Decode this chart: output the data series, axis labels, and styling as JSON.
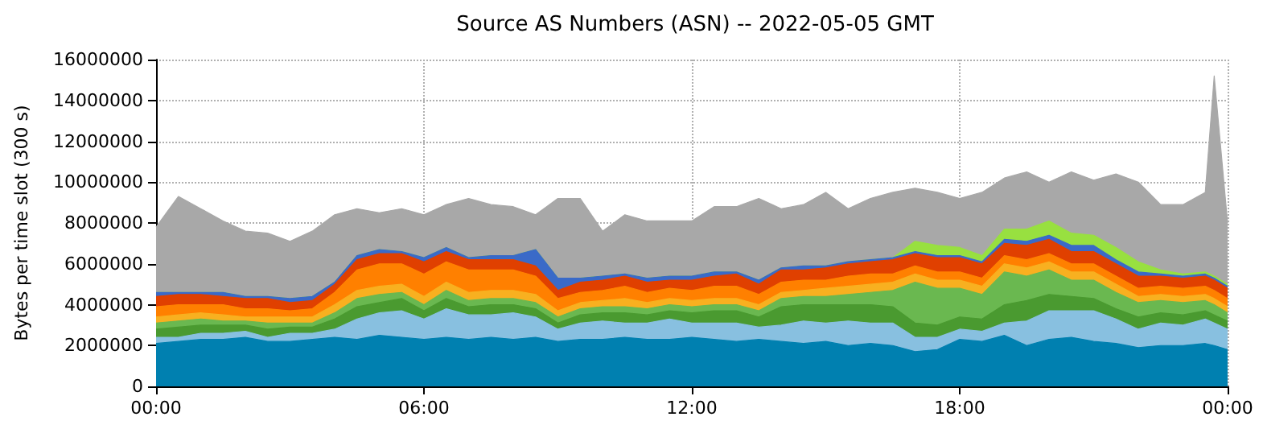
{
  "chart_data": {
    "type": "area",
    "stacked": true,
    "title": "Source AS Numbers (ASN) -- 2022-05-05 GMT",
    "ylabel": "Bytes per time slot (300 s)",
    "x": [
      0,
      0.5,
      1,
      1.5,
      2,
      2.5,
      3,
      3.5,
      4,
      4.5,
      5,
      5.5,
      6,
      6.5,
      7,
      7.5,
      8,
      8.5,
      9,
      9.5,
      10,
      10.5,
      11,
      11.5,
      12,
      12.5,
      13,
      13.5,
      14,
      14.5,
      15,
      15.5,
      16,
      16.5,
      17,
      17.5,
      18,
      18.5,
      19,
      19.5,
      20,
      20.5,
      21,
      21.5,
      22,
      22.5,
      23,
      23.5,
      23.7,
      24
    ],
    "xlim": [
      0,
      24
    ],
    "xticks": [
      {
        "value": 0,
        "label": "00:00"
      },
      {
        "value": 6,
        "label": "06:00"
      },
      {
        "value": 12,
        "label": "12:00"
      },
      {
        "value": 18,
        "label": "18:00"
      },
      {
        "value": 24,
        "label": "00:00"
      }
    ],
    "ylim": [
      0,
      16000000
    ],
    "yticks": [
      0,
      2000000,
      4000000,
      6000000,
      8000000,
      10000000,
      12000000,
      14000000,
      16000000
    ],
    "grid": true,
    "marker": "none",
    "series": [
      {
        "color": "#0080b0",
        "values": [
          2100000,
          2200000,
          2300000,
          2300000,
          2400000,
          2200000,
          2200000,
          2300000,
          2400000,
          2300000,
          2500000,
          2400000,
          2300000,
          2400000,
          2300000,
          2400000,
          2300000,
          2400000,
          2200000,
          2300000,
          2300000,
          2400000,
          2300000,
          2300000,
          2400000,
          2300000,
          2200000,
          2300000,
          2200000,
          2100000,
          2200000,
          2000000,
          2100000,
          2000000,
          1700000,
          1800000,
          2300000,
          2200000,
          2500000,
          2000000,
          2300000,
          2400000,
          2200000,
          2100000,
          1900000,
          2000000,
          2000000,
          2100000,
          2000000,
          1800000
        ]
      },
      {
        "color": "#88c0e0",
        "values": [
          300000,
          200000,
          300000,
          300000,
          300000,
          200000,
          400000,
          300000,
          400000,
          1000000,
          1100000,
          1300000,
          1000000,
          1400000,
          1200000,
          1100000,
          1300000,
          1000000,
          600000,
          800000,
          900000,
          700000,
          800000,
          1000000,
          700000,
          800000,
          900000,
          600000,
          800000,
          1100000,
          900000,
          1200000,
          1000000,
          1100000,
          700000,
          600000,
          500000,
          500000,
          600000,
          1200000,
          1400000,
          1300000,
          1500000,
          1200000,
          900000,
          1100000,
          1000000,
          1200000,
          1100000,
          1000000
        ]
      },
      {
        "color": "#4a9a30",
        "values": [
          400000,
          500000,
          400000,
          400000,
          300000,
          400000,
          300000,
          300000,
          500000,
          600000,
          500000,
          600000,
          400000,
          500000,
          400000,
          500000,
          400000,
          400000,
          300000,
          400000,
          400000,
          500000,
          400000,
          400000,
          500000,
          600000,
          600000,
          500000,
          900000,
          800000,
          900000,
          800000,
          900000,
          800000,
          700000,
          600000,
          600000,
          600000,
          900000,
          1000000,
          800000,
          700000,
          600000,
          500000,
          600000,
          500000,
          500000,
          400000,
          400000,
          400000
        ]
      },
      {
        "color": "#6ab850",
        "values": [
          300000,
          300000,
          300000,
          200000,
          200000,
          300000,
          200000,
          200000,
          300000,
          400000,
          400000,
          300000,
          300000,
          400000,
          300000,
          300000,
          300000,
          300000,
          300000,
          300000,
          300000,
          300000,
          300000,
          300000,
          300000,
          300000,
          300000,
          300000,
          400000,
          400000,
          400000,
          500000,
          600000,
          800000,
          2000000,
          1800000,
          1400000,
          1200000,
          1600000,
          1200000,
          1200000,
          800000,
          900000,
          800000,
          700000,
          600000,
          600000,
          500000,
          500000,
          400000
        ]
      },
      {
        "color": "#f8b020",
        "values": [
          300000,
          300000,
          300000,
          300000,
          200000,
          300000,
          300000,
          300000,
          400000,
          400000,
          400000,
          400000,
          400000,
          400000,
          400000,
          400000,
          400000,
          400000,
          300000,
          300000,
          300000,
          400000,
          300000,
          300000,
          300000,
          300000,
          300000,
          300000,
          300000,
          300000,
          400000,
          400000,
          400000,
          400000,
          400000,
          400000,
          400000,
          400000,
          400000,
          400000,
          400000,
          400000,
          400000,
          400000,
          300000,
          300000,
          300000,
          300000,
          300000,
          300000
        ]
      },
      {
        "color": "#ff8000",
        "values": [
          500000,
          500000,
          400000,
          500000,
          400000,
          400000,
          300000,
          400000,
          600000,
          1000000,
          1100000,
          1000000,
          1100000,
          1000000,
          1100000,
          1000000,
          1000000,
          900000,
          600000,
          500000,
          500000,
          600000,
          500000,
          500000,
          500000,
          600000,
          600000,
          500000,
          500000,
          500000,
          400000,
          500000,
          500000,
          400000,
          400000,
          400000,
          400000,
          400000,
          400000,
          400000,
          400000,
          400000,
          400000,
          400000,
          400000,
          400000,
          400000,
          400000,
          400000,
          400000
        ]
      },
      {
        "color": "#e04000",
        "values": [
          500000,
          500000,
          500000,
          400000,
          500000,
          500000,
          400000,
          400000,
          400000,
          500000,
          500000,
          500000,
          600000,
          500000,
          500000,
          500000,
          500000,
          500000,
          400000,
          500000,
          500000,
          500000,
          500000,
          400000,
          500000,
          500000,
          600000,
          500000,
          600000,
          500000,
          600000,
          600000,
          600000,
          700000,
          600000,
          700000,
          700000,
          700000,
          600000,
          700000,
          700000,
          600000,
          600000,
          600000,
          600000,
          500000,
          500000,
          500000,
          500000,
          500000
        ]
      },
      {
        "color": "#3a6ac8",
        "values": [
          200000,
          100000,
          100000,
          200000,
          100000,
          100000,
          200000,
          200000,
          100000,
          200000,
          200000,
          100000,
          200000,
          200000,
          100000,
          200000,
          200000,
          800000,
          600000,
          200000,
          200000,
          100000,
          200000,
          200000,
          200000,
          200000,
          100000,
          200000,
          100000,
          200000,
          100000,
          100000,
          100000,
          100000,
          100000,
          100000,
          100000,
          100000,
          200000,
          200000,
          200000,
          300000,
          300000,
          200000,
          200000,
          100000,
          100000,
          100000,
          100000,
          100000
        ]
      },
      {
        "color": "#98e040",
        "values": [
          0,
          0,
          0,
          0,
          0,
          0,
          0,
          0,
          0,
          0,
          0,
          0,
          0,
          0,
          0,
          0,
          0,
          0,
          0,
          0,
          0,
          0,
          0,
          0,
          0,
          0,
          0,
          0,
          0,
          0,
          0,
          0,
          0,
          0,
          500000,
          500000,
          400000,
          300000,
          500000,
          600000,
          700000,
          600000,
          500000,
          600000,
          500000,
          200000,
          100000,
          100000,
          100000,
          100000
        ]
      },
      {
        "color": "#a8a8a8",
        "values": [
          3200000,
          4700000,
          4100000,
          3500000,
          3200000,
          3100000,
          2800000,
          3200000,
          3300000,
          2300000,
          1800000,
          2100000,
          2100000,
          2100000,
          2900000,
          2500000,
          2400000,
          1700000,
          3900000,
          3900000,
          2200000,
          2900000,
          2800000,
          2700000,
          2700000,
          3200000,
          3200000,
          4000000,
          2900000,
          3000000,
          3600000,
          2600000,
          3000000,
          3200000,
          2600000,
          2600000,
          2400000,
          3100000,
          2500000,
          2800000,
          1900000,
          3000000,
          2700000,
          3600000,
          3900000,
          3200000,
          3400000,
          3900000,
          9800000,
          3000000
        ]
      }
    ]
  }
}
